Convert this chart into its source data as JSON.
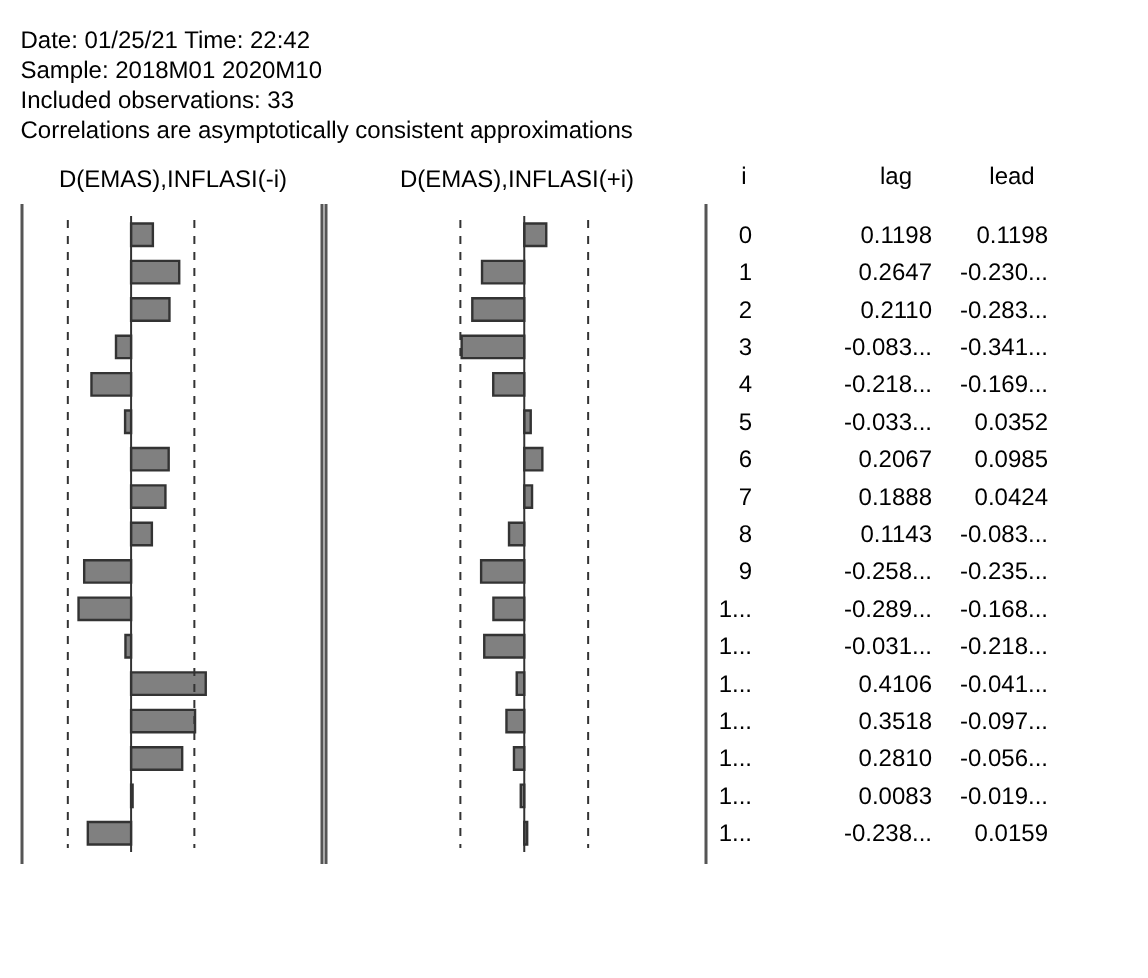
{
  "chart_data": [
    {
      "type": "bar",
      "orientation": "horizontal",
      "title": "Date: 01/25/21   Time: 22:42",
      "annotations": [
        "Sample: 2018M01 2020M10",
        "Included observations: 33",
        "Correlations are asymptotically consistent approximations"
      ],
      "xlabel": "D(EMAS),INFLASI(-i)",
      "ylabel": "i",
      "categories": [
        "0",
        "1",
        "2",
        "3",
        "4",
        "5",
        "6",
        "7",
        "8",
        "9",
        "1...",
        "1...",
        "1...",
        "1...",
        "1...",
        "1...",
        "1..."
      ],
      "series": [
        {
          "name": "lag",
          "color": "#808080",
          "values": [
            0.1198,
            0.2647,
            0.211,
            -0.083,
            -0.218,
            -0.033,
            0.2067,
            0.1888,
            0.1143,
            -0.258,
            -0.289,
            -0.031,
            0.4106,
            0.3518,
            0.281,
            0.0083,
            -0.238
          ],
          "value_labels": [
            "0.1198",
            "0.2647",
            "0.2110",
            "-0.083...",
            "-0.218...",
            "-0.033...",
            "0.2067",
            "0.1888",
            "0.1143",
            "-0.258...",
            "-0.289...",
            "-0.031...",
            "0.4106",
            "0.3518",
            "0.2810",
            "0.0083",
            "-0.238..."
          ]
        }
      ],
      "xlim": [
        -0.6,
        1.05
      ],
      "tick_labels": false,
      "ref_lines": [
        {
          "axis": "x",
          "value": -0.348,
          "line_style": "dashed"
        },
        {
          "axis": "x",
          "value": 0.348,
          "line_style": "dashed"
        }
      ]
    },
    {
      "type": "bar",
      "orientation": "horizontal",
      "xlabel": "D(EMAS),INFLASI(+i)",
      "categories": [
        "0",
        "1",
        "2",
        "3",
        "4",
        "5",
        "6",
        "7",
        "8",
        "9",
        "1...",
        "1...",
        "1...",
        "1...",
        "1...",
        "1...",
        "1..."
      ],
      "series": [
        {
          "name": "lead",
          "color": "#808080",
          "values": [
            0.1198,
            -0.23,
            -0.283,
            -0.341,
            -0.169,
            0.0352,
            0.0985,
            0.0424,
            -0.083,
            -0.235,
            -0.168,
            -0.218,
            -0.041,
            -0.097,
            -0.056,
            -0.019,
            0.0159
          ],
          "value_labels": [
            "0.1198",
            "-0.230...",
            "-0.283...",
            "-0.341...",
            "-0.169...",
            "0.0352",
            "0.0985",
            "0.0424",
            "-0.083...",
            "-0.235...",
            "-0.168...",
            "-0.218...",
            "-0.041...",
            "-0.097...",
            "-0.056...",
            "-0.019...",
            "0.0159"
          ]
        }
      ],
      "xlim": [
        -1.08,
        0.99
      ],
      "tick_labels": false,
      "ref_lines": [
        {
          "axis": "x",
          "value": -0.348,
          "line_style": "dashed"
        },
        {
          "axis": "x",
          "value": 0.348,
          "line_style": "dashed"
        }
      ]
    }
  ]
}
